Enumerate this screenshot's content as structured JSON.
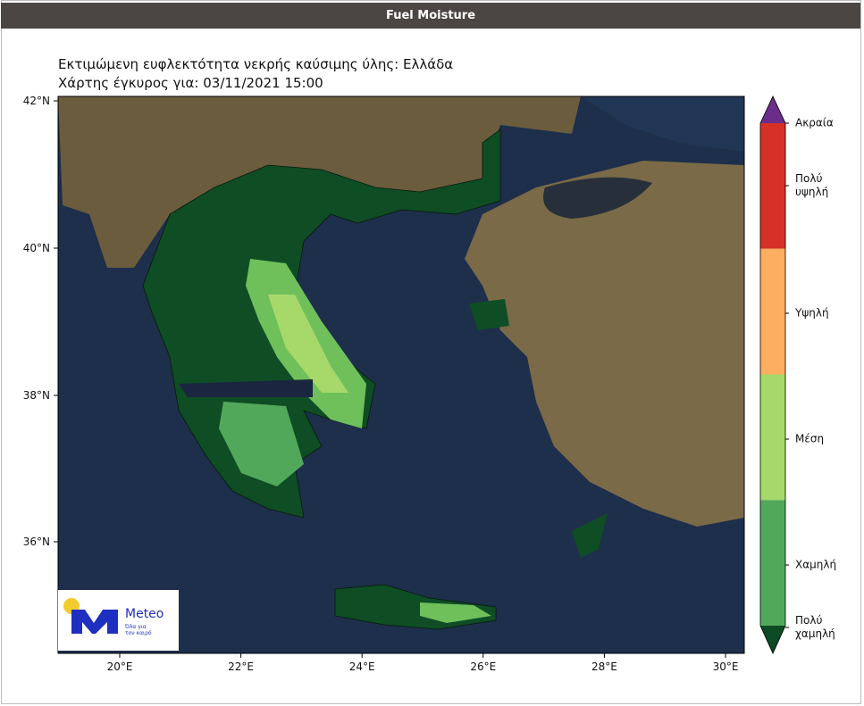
{
  "header": {
    "title": "Fuel Moisture"
  },
  "map": {
    "title": "Εκτιμώμενη ευφλεκτότητα νεκρής καύσιμης ύλης: Ελλάδα",
    "subtitle": "Χάρτης έγκυρος για: 03/11/2021 15:00",
    "lat_ticks": [
      "42°N",
      "40°N",
      "38°N",
      "36°N"
    ],
    "lon_ticks": [
      "20°E",
      "22°E",
      "24°E",
      "26°E",
      "28°E",
      "30°E"
    ],
    "legend": [
      {
        "label": "Ακραία",
        "color": "#6b2d8a"
      },
      {
        "label": "Πολύ υψηλή",
        "color": "#d73027"
      },
      {
        "label": "Υψηλή",
        "color": "#fdae61"
      },
      {
        "label": "Μέση",
        "color": "#a6d96a"
      },
      {
        "label": "Χαμηλή",
        "color": "#52a85a"
      },
      {
        "label": "Πολύ χαμηλή",
        "color": "#0b4a22"
      }
    ],
    "logo": {
      "name": "Meteo",
      "tagline": [
        "Όλα για",
        "τον καιρό"
      ]
    }
  }
}
